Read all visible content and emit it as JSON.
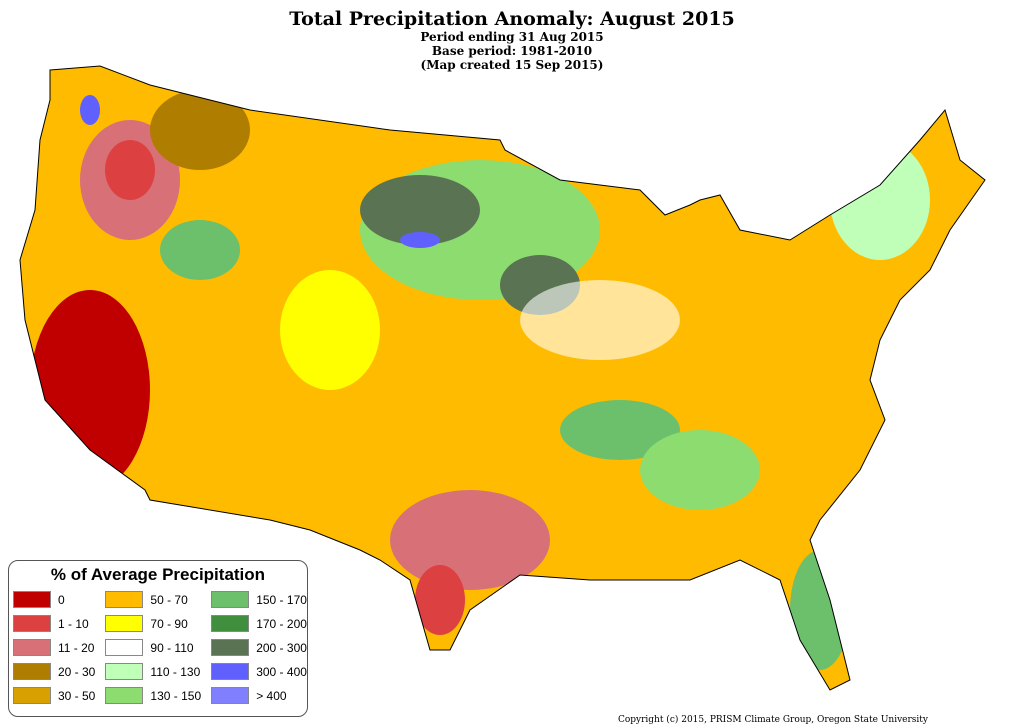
{
  "title": "Total Precipitation Anomaly: August 2015",
  "subtitle_lines": [
    "Period ending 31 Aug 2015",
    "Base period: 1981-2010",
    "(Map created 15 Sep 2015)"
  ],
  "legend": {
    "title": "% of Average Precipitation",
    "items": [
      {
        "label": "0",
        "color": "#c00000"
      },
      {
        "label": "50 - 70",
        "color": "#ffbb00"
      },
      {
        "label": "150 - 170",
        "color": "#6cc06c"
      },
      {
        "label": "1 - 10",
        "color": "#dc4040"
      },
      {
        "label": "70 - 90",
        "color": "#ffff00"
      },
      {
        "label": "170 - 200",
        "color": "#3f8f3f"
      },
      {
        "label": "11 - 20",
        "color": "#d87078"
      },
      {
        "label": "90 - 110",
        "color": "#ffffff"
      },
      {
        "label": "200 - 300",
        "color": "#5a7352"
      },
      {
        "label": "20 - 30",
        "color": "#af7d00"
      },
      {
        "label": "110 - 130",
        "color": "#c0ffb8"
      },
      {
        "label": "300 - 400",
        "color": "#6060ff"
      },
      {
        "label": "30 - 50",
        "color": "#d8a000"
      },
      {
        "label": "130 - 150",
        "color": "#8cdc70"
      },
      {
        "label": "> 400",
        "color": "#8080ff"
      }
    ]
  },
  "copyright": "Copyright (c) 2015, PRISM Climate Group, Oregon State University"
}
